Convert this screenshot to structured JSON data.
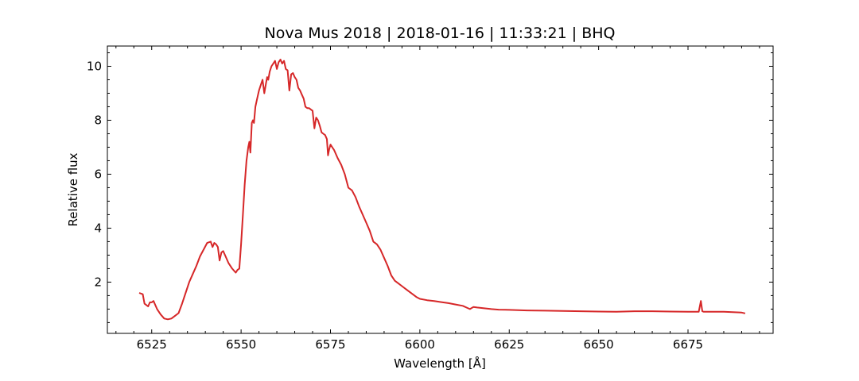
{
  "chart_data": {
    "type": "line",
    "title": "Nova Mus 2018 | 2018-01-16 | 11:33:21 | BHQ",
    "xlabel": "Wavelength [Å]",
    "ylabel": "Relative flux",
    "xlim": [
      6512.6,
      6698.8
    ],
    "ylim": [
      0.1,
      10.75
    ],
    "x_major_ticks": [
      6525,
      6550,
      6575,
      6600,
      6625,
      6650,
      6675
    ],
    "x_tick_labels": [
      "6525",
      "6550",
      "6575",
      "6600",
      "6625",
      "6650",
      "6675"
    ],
    "x_minor_step": 5,
    "y_major_ticks": [
      2,
      4,
      6,
      8,
      10
    ],
    "y_tick_labels": [
      "2",
      "4",
      "6",
      "8",
      "10"
    ],
    "y_minor_step": 0.5,
    "ticks_direction": "in",
    "grid": false,
    "series": [
      {
        "color": "#d62728",
        "x": [
          6521.5,
          6522.5,
          6523.0,
          6523.5,
          6524.0,
          6524.5,
          6525.0,
          6525.5,
          6526.5,
          6527.5,
          6528.5,
          6529.5,
          6530.5,
          6531.5,
          6532.5,
          6533.5,
          6534.5,
          6535.5,
          6536.5,
          6537.5,
          6538.5,
          6539.5,
          6540.5,
          6541.5,
          6542.0,
          6542.5,
          6543.0,
          6543.5,
          6544.0,
          6544.5,
          6545.0,
          6545.5,
          6546.5,
          6547.5,
          6548.5,
          6549.0,
          6549.5,
          6550.0,
          6550.5,
          6551.0,
          6551.5,
          6552.0,
          6552.3,
          6552.6,
          6553.0,
          6553.3,
          6553.6,
          6554.0,
          6554.5,
          6555.0,
          6555.5,
          6556.0,
          6556.5,
          6557.0,
          6557.3,
          6557.6,
          6558.0,
          6558.5,
          6559.0,
          6559.5,
          6560.0,
          6560.5,
          6561.0,
          6561.5,
          6562.0,
          6562.5,
          6563.0,
          6563.5,
          6564.0,
          6564.5,
          6565.0,
          6565.5,
          6566.0,
          6566.5,
          6567.0,
          6567.5,
          6568.0,
          6568.5,
          6569.0,
          6569.5,
          6570.0,
          6570.5,
          6571.0,
          6571.5,
          6572.0,
          6572.5,
          6573.0,
          6573.5,
          6574.0,
          6574.3,
          6574.6,
          6575.0,
          6575.5,
          6576.0,
          6577.0,
          6578.0,
          6579.0,
          6580.0,
          6581.0,
          6582.0,
          6583.0,
          6584.0,
          6585.0,
          6586.0,
          6587.0,
          6588.0,
          6589.0,
          6590.0,
          6591.0,
          6592.0,
          6593.0,
          6594.0,
          6595.0,
          6596.0,
          6597.0,
          6598.0,
          6599.0,
          6600.0,
          6602.0,
          6604.0,
          6606.0,
          6608.0,
          6610.0,
          6612.0,
          6613.5,
          6614.0,
          6615.0,
          6616.0,
          6618.0,
          6620.0,
          6622.0,
          6625.0,
          6630.0,
          6635.0,
          6640.0,
          6645.0,
          6650.0,
          6655.0,
          6660.0,
          6665.0,
          6670.0,
          6675.0,
          6678.0,
          6678.6,
          6679.0,
          6679.4,
          6680.0,
          6685.0,
          6690.0,
          6691.0
        ],
        "y": [
          1.6,
          1.55,
          1.2,
          1.15,
          1.1,
          1.25,
          1.25,
          1.3,
          1.0,
          0.8,
          0.65,
          0.62,
          0.65,
          0.75,
          0.85,
          1.2,
          1.6,
          2.0,
          2.3,
          2.6,
          2.95,
          3.2,
          3.45,
          3.5,
          3.3,
          3.45,
          3.4,
          3.3,
          2.8,
          3.1,
          3.15,
          3.0,
          2.7,
          2.5,
          2.35,
          2.45,
          2.5,
          3.4,
          4.5,
          5.6,
          6.5,
          7.0,
          7.2,
          6.8,
          7.9,
          8.0,
          7.9,
          8.5,
          8.8,
          9.1,
          9.3,
          9.5,
          9.0,
          9.4,
          9.6,
          9.5,
          9.8,
          10.0,
          10.1,
          10.2,
          9.9,
          10.15,
          10.25,
          10.1,
          10.2,
          9.9,
          9.85,
          9.1,
          9.7,
          9.75,
          9.6,
          9.5,
          9.2,
          9.1,
          8.95,
          8.8,
          8.5,
          8.45,
          8.45,
          8.4,
          8.35,
          7.7,
          8.1,
          8.0,
          7.8,
          7.55,
          7.5,
          7.45,
          7.3,
          6.7,
          6.9,
          7.1,
          7.0,
          6.9,
          6.6,
          6.35,
          6.0,
          5.5,
          5.4,
          5.15,
          4.8,
          4.5,
          4.2,
          3.9,
          3.5,
          3.4,
          3.2,
          2.9,
          2.6,
          2.25,
          2.05,
          1.95,
          1.85,
          1.75,
          1.65,
          1.55,
          1.45,
          1.38,
          1.33,
          1.3,
          1.26,
          1.22,
          1.17,
          1.12,
          1.03,
          1.0,
          1.08,
          1.06,
          1.03,
          1.0,
          0.98,
          0.97,
          0.95,
          0.94,
          0.93,
          0.92,
          0.91,
          0.9,
          0.92,
          0.92,
          0.91,
          0.9,
          0.9,
          1.3,
          0.92,
          0.9,
          0.9,
          0.9,
          0.87,
          0.84
        ]
      }
    ]
  }
}
